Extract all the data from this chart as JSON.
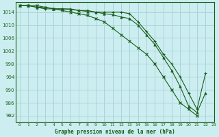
{
  "title": "Graphe pression niveau de la mer (hPa)",
  "bg_color": "#cceef0",
  "grid_color": "#aad4d8",
  "line_color": "#1a5c1a",
  "xlim": [
    -0.5,
    23
  ],
  "ylim": [
    980,
    1017
  ],
  "yticks": [
    982,
    986,
    990,
    994,
    998,
    1002,
    1006,
    1010,
    1014
  ],
  "xticks": [
    0,
    1,
    2,
    3,
    4,
    5,
    6,
    7,
    8,
    9,
    10,
    11,
    12,
    13,
    14,
    15,
    16,
    17,
    18,
    19,
    20,
    21,
    22,
    23
  ],
  "series1_x": [
    0,
    1,
    2,
    3,
    4,
    5,
    6,
    7,
    8,
    9,
    10,
    11,
    12,
    13,
    14,
    15,
    16,
    17,
    18,
    19,
    20,
    21,
    22
  ],
  "series1_y": [
    1016,
    1016,
    1015.5,
    1015,
    1015,
    1015,
    1015,
    1014.5,
    1014.5,
    1014,
    1014,
    1014,
    1014,
    1013.5,
    1011,
    1008,
    1005,
    1001,
    998,
    994,
    989,
    984,
    995
  ],
  "series2_x": [
    0,
    1,
    2,
    3,
    4,
    5,
    6,
    7,
    8,
    9,
    10,
    11,
    12,
    13,
    14,
    15,
    16,
    17,
    18,
    19,
    20,
    21
  ],
  "series2_y": [
    1016,
    1016,
    1016,
    1015.5,
    1015,
    1014.5,
    1014,
    1013.5,
    1013,
    1012,
    1011,
    1009,
    1007,
    1005,
    1003,
    1001,
    998,
    994,
    990,
    986,
    984,
    982
  ],
  "series3_x": [
    0,
    1,
    2,
    3,
    4,
    5,
    6,
    7,
    8,
    9,
    10,
    11,
    12,
    13,
    14,
    15,
    16,
    17,
    18,
    19,
    20,
    21,
    22
  ],
  "series3_y": [
    1016,
    1016,
    1015.5,
    1015.5,
    1015,
    1015,
    1014.8,
    1014.5,
    1014.2,
    1014,
    1013.5,
    1013.2,
    1012.5,
    1012,
    1010,
    1007,
    1004,
    1000,
    996,
    991,
    985,
    983,
    989
  ]
}
